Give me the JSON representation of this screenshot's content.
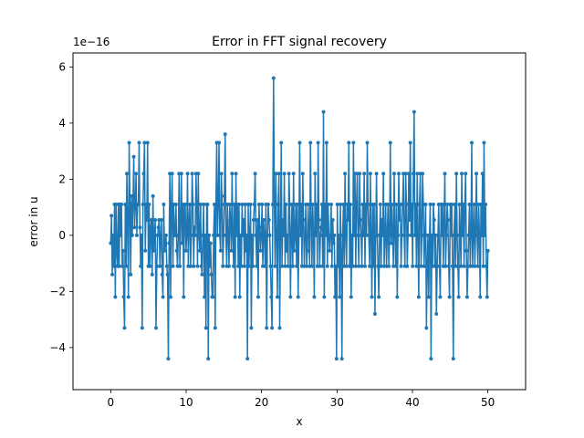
{
  "chart_data": {
    "type": "line",
    "title": "Error in FFT signal recovery",
    "xlabel": "x",
    "ylabel": "error in u",
    "y_scale_label": "1e−16",
    "y_scale_factor": 1e-16,
    "xlim": [
      -5,
      55
    ],
    "ylim": [
      -5.5,
      6.5
    ],
    "xticks": [
      0,
      10,
      20,
      30,
      40,
      50
    ],
    "xtick_labels": [
      "0",
      "10",
      "20",
      "30",
      "40",
      "50"
    ],
    "yticks": [
      -4,
      -2,
      0,
      2,
      4,
      6
    ],
    "ytick_labels": [
      "−4",
      "−2",
      "0",
      "2",
      "4",
      "6"
    ],
    "grid": false,
    "series_color": "#1f77b4",
    "marker": "circle",
    "n_points": 500,
    "x_range": [
      0,
      50
    ],
    "series": [
      {
        "values": [
          -0.28,
          0.7,
          -1.4,
          0.0,
          -1.1,
          1.1,
          -2.2,
          1.1,
          -0.55,
          -1.1,
          1.1,
          -1.1,
          1.1,
          0.0,
          1.1,
          -1.1,
          -0.55,
          -2.2,
          -3.3,
          1.1,
          -1.1,
          2.2,
          0.55,
          -2.2,
          3.3,
          1.1,
          -1.4,
          1.4,
          0.0,
          1.1,
          2.8,
          0.28,
          1.1,
          2.2,
          0.0,
          1.1,
          1.1,
          3.3,
          0.28,
          -1.1,
          0.0,
          -3.3,
          1.1,
          2.2,
          3.3,
          -0.55,
          1.1,
          0.55,
          3.3,
          -1.1,
          1.1,
          -1.1,
          0.28,
          0.55,
          -1.4,
          1.4,
          -0.55,
          0.0,
          0.55,
          -3.3,
          -1.1,
          0.0,
          0.28,
          0.55,
          -1.1,
          0.0,
          0.55,
          -1.4,
          -2.2,
          1.1,
          -0.55,
          -0.28,
          0.0,
          -1.1,
          -1.4,
          -4.4,
          -0.28,
          2.2,
          -2.2,
          1.1,
          2.2,
          -1.1,
          1.1,
          0.0,
          0.0,
          1.1,
          -0.55,
          -1.1,
          0.0,
          2.2,
          -1.1,
          0.55,
          2.2,
          -0.28,
          1.1,
          -2.2,
          1.1,
          1.1,
          -0.55,
          0.0,
          2.2,
          -1.1,
          0.55,
          1.1,
          -1.1,
          0.0,
          2.2,
          1.1,
          -1.1,
          0.28,
          0.0,
          2.2,
          1.1,
          -1.1,
          2.2,
          0.0,
          -0.55,
          1.1,
          -1.1,
          -1.4,
          0.0,
          1.1,
          -2.2,
          0.0,
          -3.3,
          1.1,
          1.1,
          -4.4,
          0.0,
          -1.1,
          -0.28,
          -1.4,
          -2.2,
          -2.2,
          0.0,
          1.1,
          -3.3,
          1.1,
          3.3,
          0.0,
          1.1,
          3.3,
          0.0,
          -0.55,
          2.2,
          1.1,
          -1.1,
          0.0,
          1.4,
          3.6,
          0.0,
          -1.1,
          1.1,
          0.0,
          -1.1,
          1.1,
          0.55,
          -0.55,
          2.2,
          0.0,
          -1.1,
          1.1,
          -2.2,
          2.2,
          0.0,
          1.1,
          -1.1,
          1.1,
          -2.2,
          0.0,
          -1.1,
          1.1,
          0.0,
          0.55,
          -1.1,
          1.1,
          -0.55,
          0.0,
          -4.4,
          1.1,
          -1.1,
          0.0,
          1.1,
          -3.3,
          0.0,
          -1.1,
          0.55,
          1.1,
          2.2,
          0.0,
          -1.1,
          0.55,
          -2.2,
          1.1,
          0.28,
          -0.55,
          0.0,
          1.1,
          -1.1,
          0.55,
          0.0,
          -1.1,
          1.1,
          -3.3,
          0.0,
          1.1,
          0.55,
          0.0,
          -1.1,
          -2.2,
          -3.3,
          1.1,
          5.6,
          1.1,
          -1.1,
          2.2,
          0.0,
          -2.2,
          1.1,
          2.2,
          -3.3,
          0.0,
          3.3,
          -1.1,
          0.55,
          0.0,
          2.2,
          -1.1,
          1.1,
          -0.55,
          0.0,
          -1.1,
          2.2,
          1.1,
          -2.2,
          0.0,
          1.1,
          -1.1,
          2.2,
          -0.55,
          0.0,
          1.1,
          -1.1,
          1.1,
          -2.2,
          0.0,
          3.3,
          0.0,
          1.1,
          -1.1,
          2.2,
          0.55,
          -1.1,
          0.0,
          1.1,
          -1.1,
          -0.55,
          1.1,
          0.0,
          -1.1,
          3.3,
          0.55,
          -1.1,
          1.1,
          0.0,
          -2.2,
          2.2,
          0.0,
          1.1,
          -1.1,
          3.3,
          0.55,
          -1.1,
          0.0,
          0.28,
          1.1,
          -1.1,
          4.4,
          -2.2,
          1.1,
          0.0,
          3.3,
          -1.1,
          1.1,
          0.0,
          -0.55,
          0.0,
          1.1,
          -1.1,
          0.55,
          -0.28,
          0.0,
          -2.2,
          -1.1,
          -4.4,
          1.1,
          -1.1,
          0.0,
          -2.2,
          1.1,
          -0.55,
          -4.4,
          0.0,
          1.1,
          -1.1,
          2.2,
          0.0,
          -1.1,
          1.1,
          0.55,
          3.3,
          -1.1,
          1.1,
          -2.2,
          0.0,
          -1.1,
          3.3,
          0.0,
          2.2,
          -1.1,
          1.1,
          2.2,
          0.0,
          -1.1,
          2.2,
          0.55,
          0.0,
          -1.1,
          1.1,
          0.0,
          2.2,
          -1.1,
          1.1,
          0.0,
          3.3,
          1.1,
          0.0,
          -1.1,
          2.2,
          0.0,
          -2.2,
          1.1,
          -1.1,
          1.1,
          -2.8,
          0.0,
          2.2,
          0.0,
          -1.1,
          -2.2,
          0.0,
          1.1,
          -1.1,
          0.55,
          0.0,
          2.2,
          -1.1,
          0.0,
          1.1,
          -1.1,
          0.0,
          1.1,
          -1.1,
          0.0,
          3.3,
          -0.28,
          1.1,
          0.0,
          -1.1,
          2.2,
          0.0,
          -1.1,
          1.1,
          -2.2,
          0.0,
          2.2,
          0.55,
          1.1,
          -1.1,
          0.0,
          1.1,
          2.2,
          0.0,
          -1.1,
          2.2,
          1.1,
          -1.1,
          0.0,
          2.2,
          0.55,
          3.3,
          0.0,
          1.1,
          -1.1,
          2.2,
          4.4,
          0.0,
          1.1,
          -1.1,
          2.2,
          0.0,
          -2.2,
          1.1,
          2.2,
          -1.1,
          0.0,
          2.2,
          1.1,
          -1.1,
          0.0,
          1.1,
          -3.3,
          -1.1,
          0.0,
          -2.2,
          0.0,
          1.1,
          -4.4,
          0.0,
          -1.1,
          1.1,
          0.55,
          -1.1,
          0.0,
          -2.8,
          -1.1,
          0.0,
          1.1,
          -1.1,
          -2.2,
          1.1,
          0.0,
          1.1,
          -1.1,
          0.55,
          2.2,
          -1.1,
          0.0,
          1.1,
          0.55,
          -1.1,
          -2.2,
          1.1,
          0.0,
          1.1,
          -1.1,
          -4.4,
          0.0,
          1.1,
          -1.1,
          2.2,
          0.0,
          -1.1,
          -2.2,
          1.1,
          0.0,
          -1.1,
          2.2,
          0.0,
          1.1,
          -1.1,
          1.1,
          2.2,
          -0.55,
          -2.2,
          -1.1,
          0.0,
          1.1,
          -1.1,
          0.0,
          3.3,
          -1.1,
          0.0,
          1.1,
          -1.1,
          0.0,
          2.2,
          0.0,
          -1.1,
          1.1,
          0.0,
          -2.2,
          1.1,
          0.0,
          2.2,
          -1.1,
          3.3,
          0.0,
          1.1,
          -1.1,
          -2.2,
          -0.55
        ]
      }
    ]
  }
}
